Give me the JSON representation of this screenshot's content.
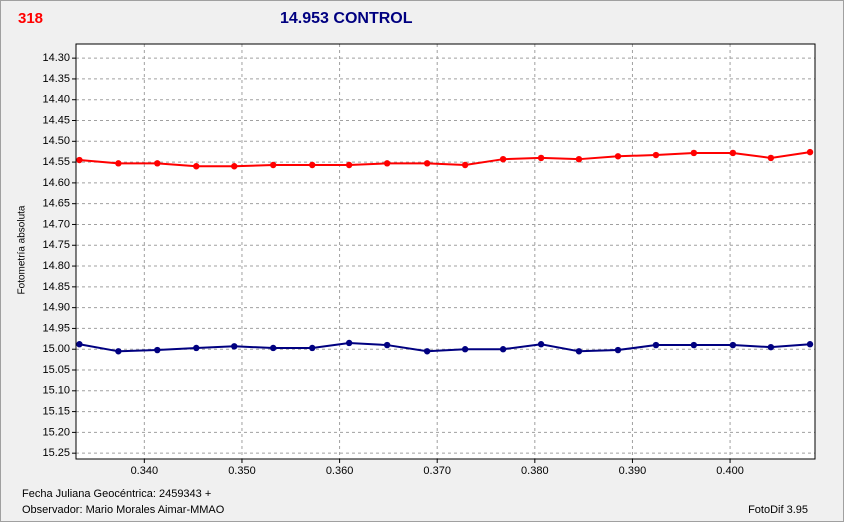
{
  "chart_data": {
    "type": "line",
    "badge": "318",
    "title": "14.953 CONTROL",
    "y_label": "Fotometría absoluta",
    "footer_date": "Fecha Juliana Geocéntrica: 2459343 +",
    "footer_observer": "Observador: Mario Morales Aimar-MMAO",
    "footer_software": "FotoDif 3.95",
    "x": [
      0.33335,
      0.33734,
      0.34133,
      0.34532,
      0.34921,
      0.3532,
      0.3572,
      0.36098,
      0.36487,
      0.36897,
      0.37286,
      0.37675,
      0.38064,
      0.38452,
      0.38852,
      0.39241,
      0.39629,
      0.40029,
      0.40418,
      0.40819
    ],
    "series": [
      {
        "color": "#ff0000",
        "values": [
          14.545,
          14.553,
          14.553,
          14.56,
          14.56,
          14.557,
          14.557,
          14.557,
          14.553,
          14.553,
          14.557,
          14.543,
          14.54,
          14.543,
          14.536,
          14.533,
          14.528,
          14.528,
          14.54,
          14.526
        ]
      },
      {
        "color": "#000080",
        "values": [
          14.988,
          15.005,
          15.002,
          14.997,
          14.993,
          14.997,
          14.997,
          14.985,
          14.99,
          15.005,
          15.0,
          15.0,
          14.988,
          15.005,
          15.002,
          14.99,
          14.99,
          14.99,
          14.995,
          14.988
        ]
      }
    ],
    "xlim": [
      0.333,
      0.4087
    ],
    "ylim": [
      14.266,
      15.264
    ],
    "y_inverted": true,
    "grid": true,
    "xticks": [
      {
        "value": 0.34,
        "label": "0.340"
      },
      {
        "value": 0.35,
        "label": "0.350"
      },
      {
        "value": 0.36,
        "label": "0.360"
      },
      {
        "value": 0.37,
        "label": "0.370"
      },
      {
        "value": 0.38,
        "label": "0.380"
      },
      {
        "value": 0.39,
        "label": "0.390"
      },
      {
        "value": 0.4,
        "label": "0.400"
      }
    ],
    "yticks": [
      {
        "value": 14.3,
        "label": "14.30"
      },
      14.35,
      {
        "value": 14.4,
        "label": "14.40"
      },
      14.45,
      {
        "value": 14.5,
        "label": "14.50"
      },
      14.55,
      {
        "value": 14.6,
        "label": "14.60"
      },
      14.65,
      {
        "value": 14.7,
        "label": "14.70"
      },
      14.75,
      {
        "value": 14.8,
        "label": "14.80"
      },
      14.85,
      {
        "value": 14.9,
        "label": "14.90"
      },
      14.95,
      {
        "value": 15.0,
        "label": "15.00"
      },
      15.05,
      {
        "value": 15.1,
        "label": "15.10"
      },
      15.15,
      {
        "value": 15.2,
        "label": "15.20"
      },
      15.25
    ]
  }
}
